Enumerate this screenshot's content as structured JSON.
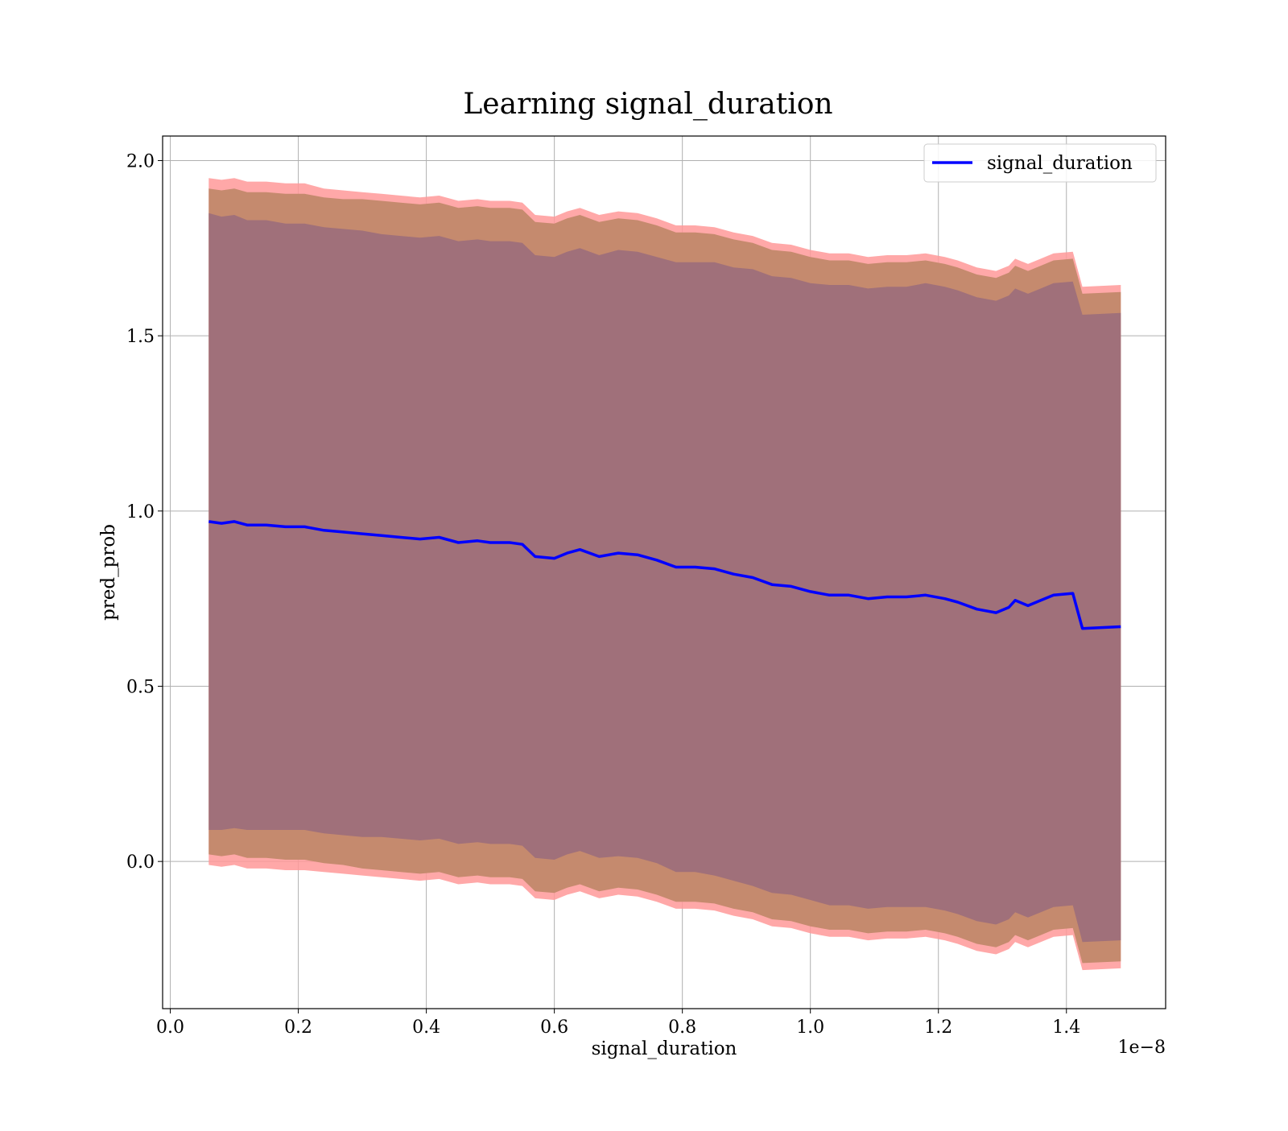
{
  "chart_data": {
    "type": "line",
    "title": "Learning signal_duration",
    "xlabel": "signal_duration",
    "ylabel": "pred_prob",
    "x_offset_label": "1e−8",
    "x_tick_labels": [
      "0.0",
      "0.2",
      "0.4",
      "0.6",
      "0.8",
      "1.0",
      "1.2",
      "1.4"
    ],
    "x_ticks": [
      0.0,
      0.2,
      0.4,
      0.6,
      0.8,
      1.0,
      1.2,
      1.4
    ],
    "y_tick_labels": [
      "0.0",
      "0.5",
      "1.0",
      "1.5",
      "2.0"
    ],
    "y_ticks": [
      0.0,
      0.5,
      1.0,
      1.5,
      2.0
    ],
    "xlim": [
      -0.012,
      1.555
    ],
    "ylim": [
      -0.42,
      2.07
    ],
    "grid": true,
    "legend": {
      "position": "top-right",
      "entries": [
        "signal_duration"
      ]
    },
    "colors": {
      "line": "#0000ff",
      "band_outer": "#ff9999",
      "band_middle": "#c58a6e",
      "band_inner": "#a0707a",
      "grid": "#b0b0b0"
    },
    "series": [
      {
        "name": "signal_duration",
        "x": [
          0.06,
          0.08,
          0.1,
          0.12,
          0.15,
          0.18,
          0.21,
          0.24,
          0.27,
          0.3,
          0.33,
          0.36,
          0.39,
          0.42,
          0.45,
          0.48,
          0.5,
          0.53,
          0.55,
          0.57,
          0.6,
          0.62,
          0.64,
          0.67,
          0.7,
          0.73,
          0.76,
          0.79,
          0.82,
          0.85,
          0.88,
          0.91,
          0.94,
          0.97,
          1.0,
          1.03,
          1.06,
          1.09,
          1.12,
          1.15,
          1.18,
          1.21,
          1.23,
          1.26,
          1.29,
          1.31,
          1.32,
          1.34,
          1.36,
          1.38,
          1.41,
          1.425,
          1.485
        ],
        "y": [
          0.97,
          0.965,
          0.97,
          0.96,
          0.96,
          0.955,
          0.955,
          0.945,
          0.94,
          0.935,
          0.93,
          0.925,
          0.92,
          0.925,
          0.91,
          0.915,
          0.91,
          0.91,
          0.905,
          0.87,
          0.865,
          0.88,
          0.89,
          0.87,
          0.88,
          0.875,
          0.86,
          0.84,
          0.84,
          0.835,
          0.82,
          0.81,
          0.79,
          0.785,
          0.77,
          0.76,
          0.76,
          0.75,
          0.755,
          0.755,
          0.76,
          0.75,
          0.74,
          0.72,
          0.71,
          0.725,
          0.745,
          0.73,
          0.745,
          0.76,
          0.765,
          0.665,
          0.67
        ],
        "band_inner_halfwidth": [
          0.88,
          0.875,
          0.875,
          0.87,
          0.87,
          0.865,
          0.865,
          0.865,
          0.865,
          0.865,
          0.86,
          0.86,
          0.86,
          0.86,
          0.86,
          0.86,
          0.86,
          0.86,
          0.86,
          0.86,
          0.86,
          0.86,
          0.86,
          0.86,
          0.865,
          0.865,
          0.865,
          0.87,
          0.87,
          0.875,
          0.875,
          0.88,
          0.88,
          0.88,
          0.88,
          0.885,
          0.885,
          0.885,
          0.885,
          0.885,
          0.89,
          0.89,
          0.89,
          0.89,
          0.89,
          0.89,
          0.89,
          0.89,
          0.89,
          0.89,
          0.89,
          0.895,
          0.895
        ],
        "band_middle_halfwidth": [
          0.95,
          0.95,
          0.95,
          0.95,
          0.95,
          0.95,
          0.95,
          0.95,
          0.95,
          0.955,
          0.955,
          0.955,
          0.955,
          0.955,
          0.955,
          0.955,
          0.955,
          0.955,
          0.955,
          0.955,
          0.955,
          0.955,
          0.955,
          0.955,
          0.955,
          0.955,
          0.955,
          0.955,
          0.955,
          0.955,
          0.955,
          0.955,
          0.955,
          0.955,
          0.955,
          0.955,
          0.955,
          0.955,
          0.955,
          0.955,
          0.955,
          0.955,
          0.955,
          0.955,
          0.955,
          0.955,
          0.955,
          0.955,
          0.955,
          0.955,
          0.955,
          0.955,
          0.955
        ],
        "band_outer_halfwidth": [
          0.98,
          0.98,
          0.98,
          0.98,
          0.98,
          0.98,
          0.98,
          0.975,
          0.975,
          0.975,
          0.975,
          0.975,
          0.975,
          0.975,
          0.975,
          0.975,
          0.975,
          0.975,
          0.975,
          0.975,
          0.975,
          0.975,
          0.975,
          0.975,
          0.975,
          0.975,
          0.975,
          0.975,
          0.975,
          0.975,
          0.975,
          0.975,
          0.975,
          0.975,
          0.975,
          0.975,
          0.975,
          0.975,
          0.975,
          0.975,
          0.975,
          0.975,
          0.975,
          0.975,
          0.975,
          0.975,
          0.975,
          0.975,
          0.975,
          0.975,
          0.975,
          0.975,
          0.975
        ]
      }
    ]
  }
}
